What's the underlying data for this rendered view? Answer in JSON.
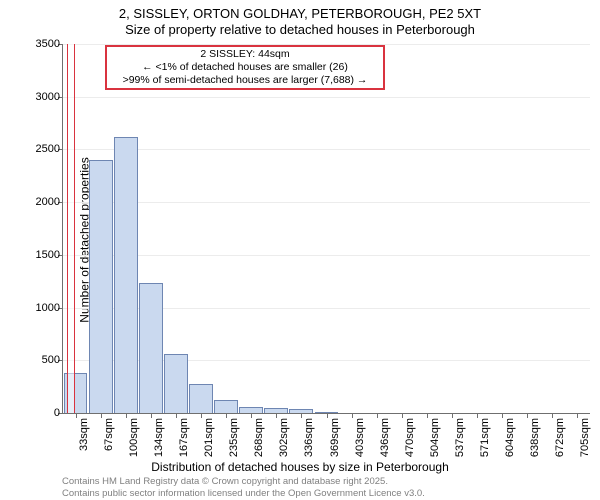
{
  "title": {
    "line1": "2, SISSLEY, ORTON GOLDHAY, PETERBOROUGH, PE2 5XT",
    "line2": "Size of property relative to detached houses in Peterborough",
    "fontsize": 13
  },
  "ylabel": "Number of detached properties",
  "xlabel": "Distribution of detached houses by size in Peterborough",
  "footer": {
    "line1": "Contains HM Land Registry data © Crown copyright and database right 2025.",
    "line2": "Contains public sector information licensed under the Open Government Licence v3.0.",
    "color": "#808080",
    "fontsize": 9.5
  },
  "chart": {
    "type": "histogram",
    "background_color": "#ffffff",
    "grid_color": "#ececec",
    "axis_color": "#6f6f6f",
    "bar_color": "#cad9ef",
    "bar_border_color": "#6e86b2",
    "tick_fontsize": 11,
    "ylim": [
      0,
      3500
    ],
    "ytick_step": 500,
    "yticks": [
      0,
      500,
      1000,
      1500,
      2000,
      2500,
      3000,
      3500
    ],
    "categories": [
      "33sqm",
      "67sqm",
      "100sqm",
      "134sqm",
      "167sqm",
      "201sqm",
      "235sqm",
      "268sqm",
      "302sqm",
      "336sqm",
      "369sqm",
      "403sqm",
      "436sqm",
      "470sqm",
      "504sqm",
      "537sqm",
      "571sqm",
      "604sqm",
      "638sqm",
      "672sqm",
      "705sqm"
    ],
    "values": [
      375,
      2400,
      2620,
      1230,
      560,
      275,
      120,
      60,
      45,
      40,
      10,
      0,
      0,
      0,
      0,
      0,
      0,
      0,
      0,
      0,
      0
    ],
    "bar_width_ratio": 0.95
  },
  "callout": {
    "line1": "2 SISSLEY: 44sqm",
    "line2": "← <1% of detached houses are smaller (26)",
    "line3": ">99% of semi-detached houses are larger (7,688) →",
    "border_color": "#d9333f",
    "highlight_fill": "rgba(255,255,255,0.0)",
    "highlight_border": "#d9333f",
    "target_category_index": 0,
    "target_fraction_into_bin": 0.33
  }
}
